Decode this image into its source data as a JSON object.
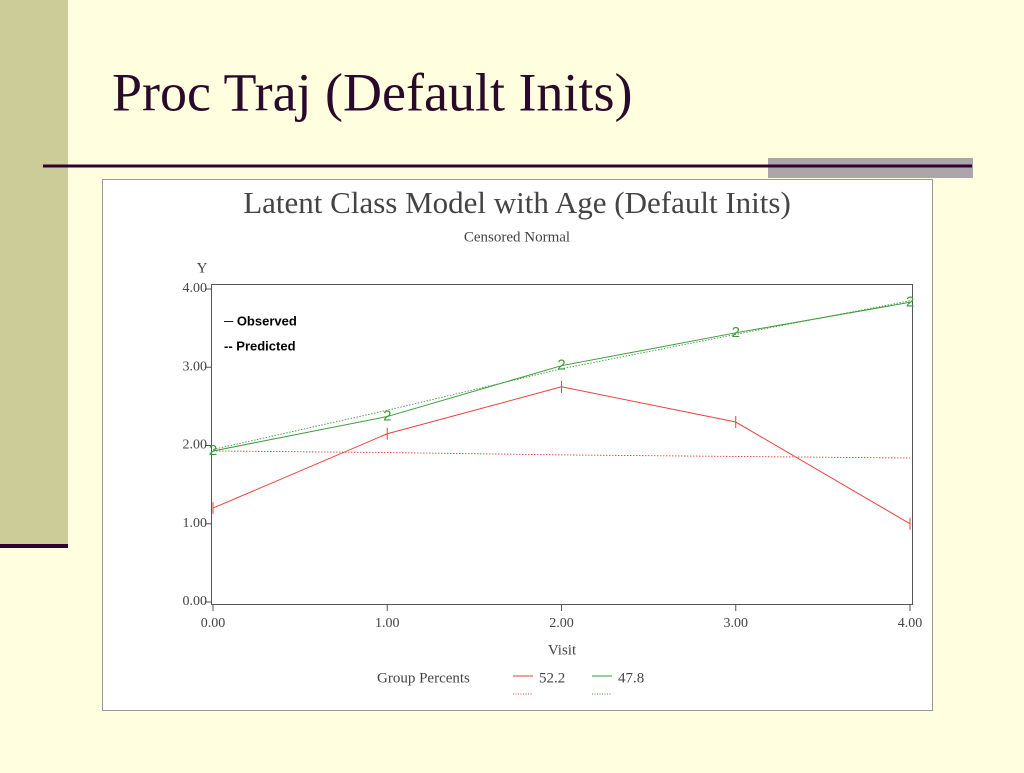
{
  "slide_title": "Proc Traj (Default Inits)",
  "chart_data": {
    "type": "line",
    "title": "Latent Class Model with Age (Default Inits)",
    "subtitle": "Censored Normal",
    "y_label": "Y",
    "x_label": "Visit",
    "x": [
      0,
      1,
      2,
      3,
      4
    ],
    "series": [
      {
        "name": "52.2",
        "color": "#e8413c",
        "observed": [
          1.2,
          2.15,
          2.75,
          2.3,
          1.0
        ],
        "predicted": [
          1.93,
          1.91,
          1.88,
          1.86,
          1.84
        ]
      },
      {
        "name": "47.8",
        "color": "#3d9a3d",
        "marker": "2",
        "observed": [
          1.93,
          2.37,
          3.02,
          3.44,
          3.83
        ],
        "predicted": [
          1.95,
          2.45,
          2.98,
          3.42,
          3.85
        ]
      }
    ],
    "xlim": [
      0,
      4
    ],
    "ylim": [
      0,
      4
    ],
    "xticks": [
      {
        "value": 0,
        "label": "0.00"
      },
      {
        "value": 1,
        "label": "1.00"
      },
      {
        "value": 2,
        "label": "2.00"
      },
      {
        "value": 3,
        "label": "3.00"
      },
      {
        "value": 4,
        "label": "4.00"
      }
    ],
    "yticks": [
      {
        "value": 0,
        "label": "0.00"
      },
      {
        "value": 1,
        "label": "1.00"
      },
      {
        "value": 2,
        "label": "2.00"
      },
      {
        "value": 3,
        "label": "3.00"
      },
      {
        "value": 4,
        "label": "4.00"
      }
    ],
    "legend_title": "Group Percents",
    "observed_label": "─ Observed",
    "predicted_label": "-- Predicted"
  }
}
